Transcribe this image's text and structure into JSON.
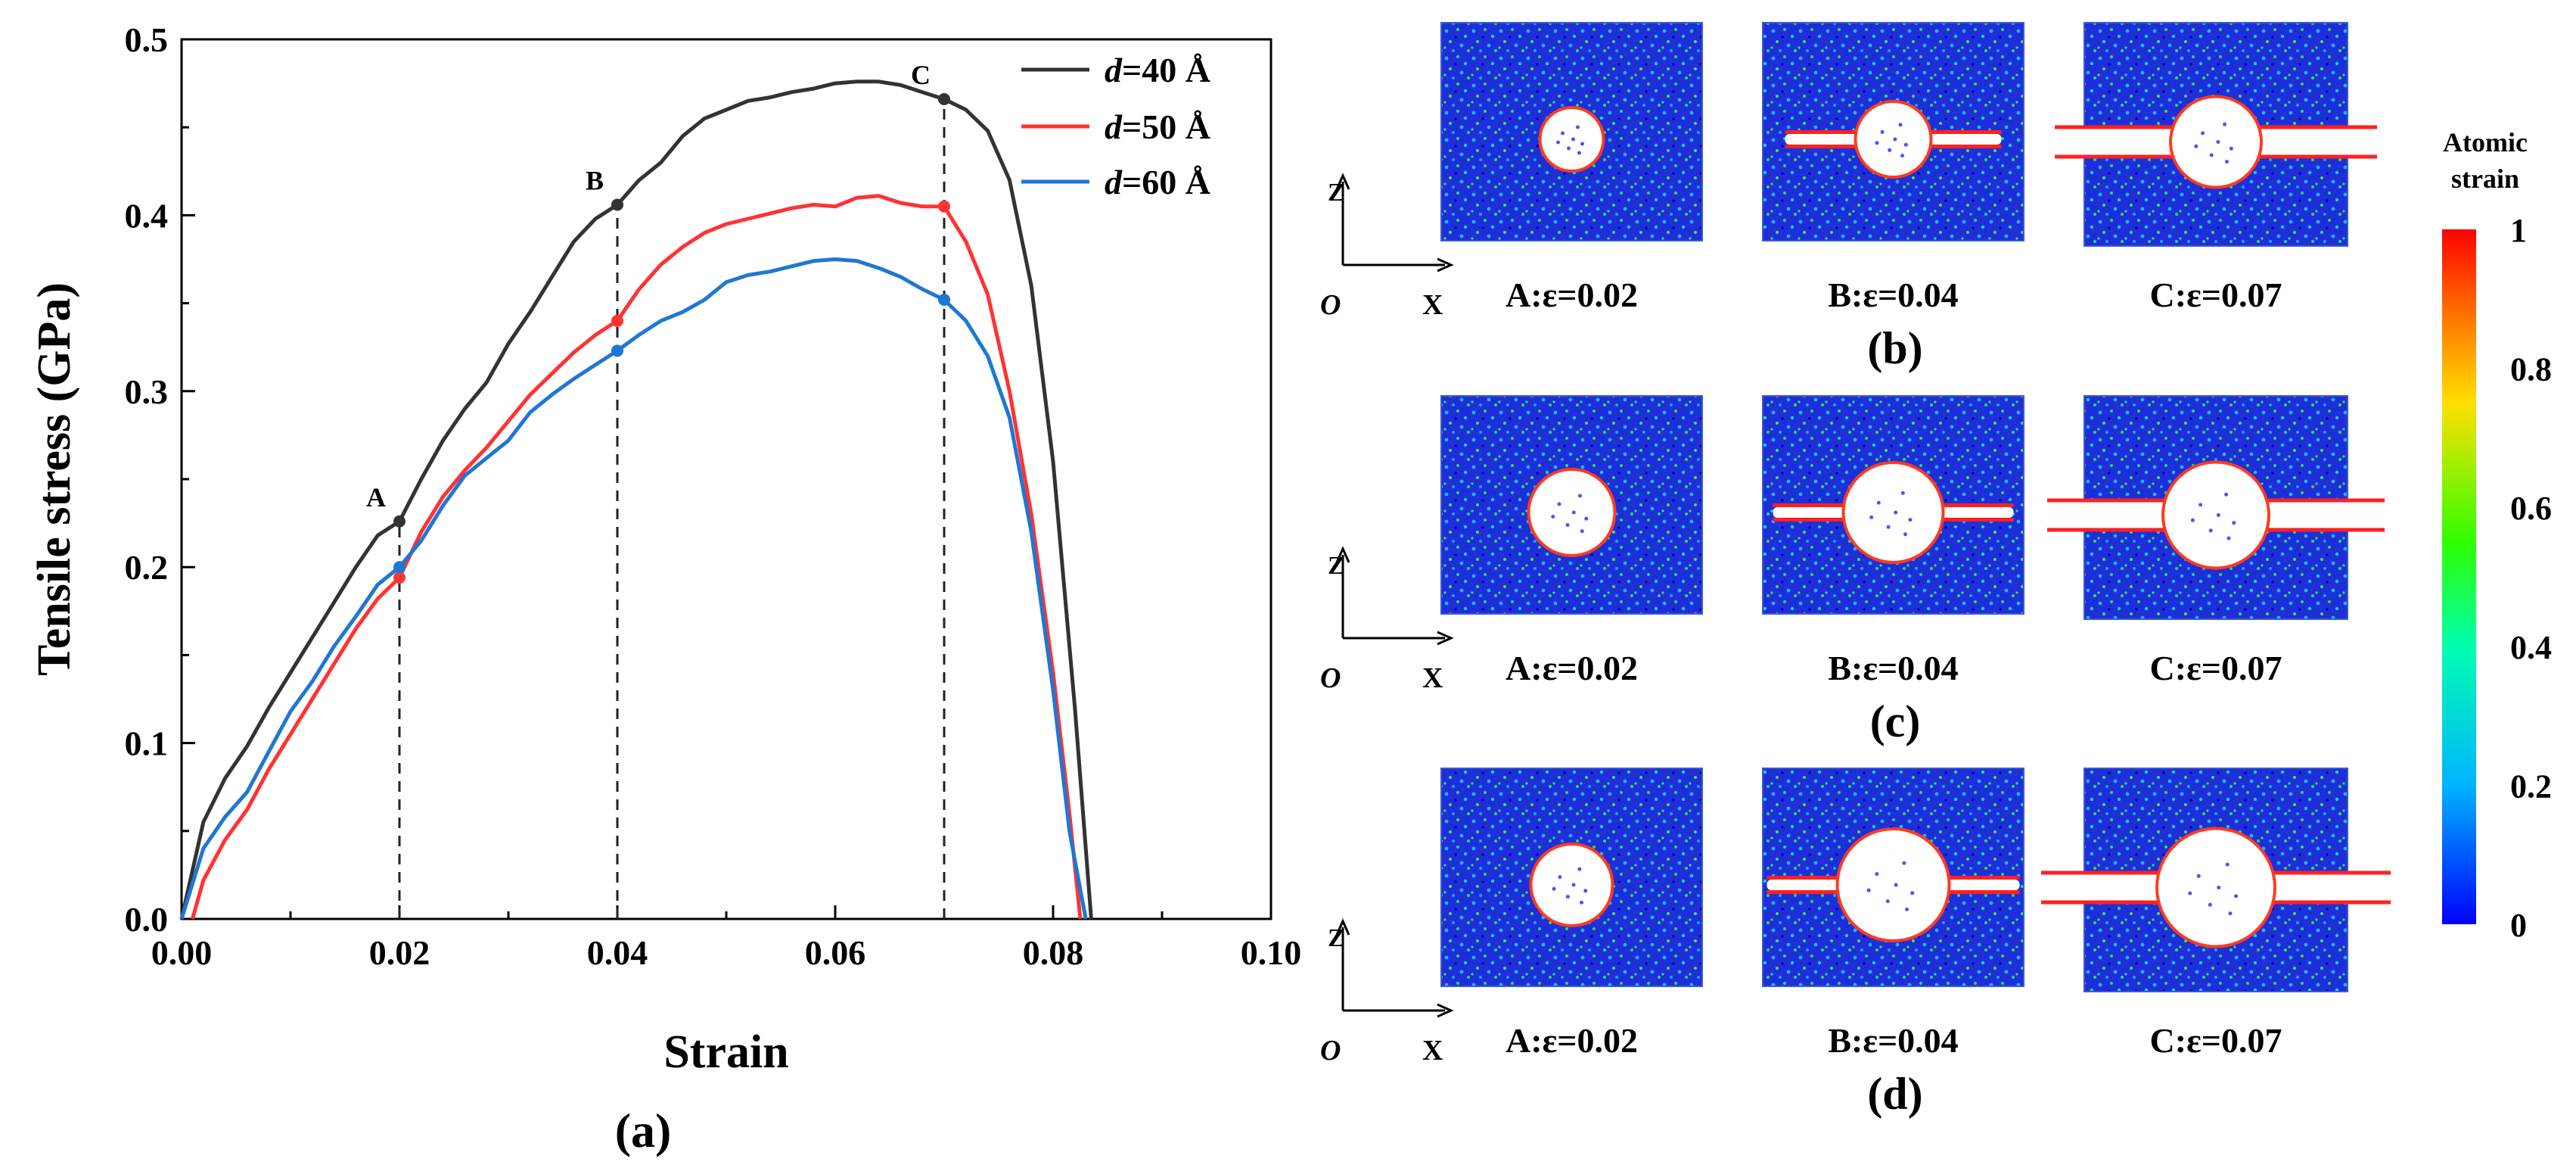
{
  "chart_data": {
    "type": "line",
    "xlabel": "Strain",
    "ylabel": "Tensile stress (GPa)",
    "panel_label": "(a)",
    "xlim": [
      0.0,
      0.1
    ],
    "ylim": [
      0.0,
      0.5
    ],
    "xticks": [
      "0.00",
      "0.02",
      "0.04",
      "0.06",
      "0.08",
      "0.10"
    ],
    "yticks": [
      "0.0",
      "0.1",
      "0.2",
      "0.3",
      "0.4",
      "0.5"
    ],
    "legend_position": "top-right",
    "series": [
      {
        "name": "d=40 Å",
        "prefix": "d",
        "suffix": "=40 Å",
        "color": "#333333",
        "x": [
          0.0,
          0.002,
          0.004,
          0.006,
          0.008,
          0.01,
          0.012,
          0.014,
          0.016,
          0.018,
          0.02,
          0.022,
          0.024,
          0.026,
          0.028,
          0.03,
          0.032,
          0.034,
          0.036,
          0.038,
          0.04,
          0.042,
          0.044,
          0.046,
          0.048,
          0.05,
          0.052,
          0.054,
          0.056,
          0.058,
          0.06,
          0.062,
          0.064,
          0.066,
          0.068,
          0.07,
          0.072,
          0.074,
          0.076,
          0.078,
          0.08,
          0.082,
          0.0835
        ],
        "y": [
          0.0,
          0.055,
          0.08,
          0.098,
          0.12,
          0.14,
          0.16,
          0.18,
          0.2,
          0.218,
          0.226,
          0.25,
          0.272,
          0.29,
          0.305,
          0.327,
          0.345,
          0.365,
          0.385,
          0.398,
          0.406,
          0.42,
          0.43,
          0.445,
          0.455,
          0.46,
          0.465,
          0.467,
          0.47,
          0.472,
          0.475,
          0.476,
          0.476,
          0.474,
          0.47,
          0.466,
          0.46,
          0.448,
          0.42,
          0.36,
          0.26,
          0.12,
          0.0
        ]
      },
      {
        "name": "d=50 Å",
        "prefix": "d",
        "suffix": "=50 Å",
        "color": "#ff3333",
        "x": [
          0.001,
          0.002,
          0.004,
          0.006,
          0.008,
          0.01,
          0.012,
          0.014,
          0.016,
          0.018,
          0.02,
          0.022,
          0.024,
          0.026,
          0.028,
          0.03,
          0.032,
          0.034,
          0.036,
          0.038,
          0.04,
          0.042,
          0.044,
          0.046,
          0.048,
          0.05,
          0.052,
          0.054,
          0.056,
          0.058,
          0.06,
          0.062,
          0.064,
          0.066,
          0.068,
          0.07,
          0.072,
          0.074,
          0.076,
          0.078,
          0.08,
          0.0815,
          0.0825
        ],
        "y": [
          0.0,
          0.022,
          0.045,
          0.062,
          0.085,
          0.105,
          0.125,
          0.145,
          0.165,
          0.182,
          0.194,
          0.22,
          0.24,
          0.255,
          0.268,
          0.283,
          0.298,
          0.31,
          0.322,
          0.332,
          0.34,
          0.358,
          0.372,
          0.382,
          0.39,
          0.395,
          0.398,
          0.401,
          0.404,
          0.406,
          0.405,
          0.41,
          0.411,
          0.407,
          0.405,
          0.405,
          0.385,
          0.355,
          0.3,
          0.23,
          0.14,
          0.06,
          0.0
        ]
      },
      {
        "name": "d=60 Å",
        "prefix": "d",
        "suffix": "=60 Å",
        "color": "#1f77d4",
        "x": [
          0.0,
          0.002,
          0.004,
          0.006,
          0.008,
          0.01,
          0.012,
          0.014,
          0.016,
          0.018,
          0.02,
          0.022,
          0.024,
          0.026,
          0.028,
          0.03,
          0.032,
          0.034,
          0.036,
          0.038,
          0.04,
          0.042,
          0.044,
          0.046,
          0.048,
          0.05,
          0.052,
          0.054,
          0.056,
          0.058,
          0.06,
          0.062,
          0.064,
          0.066,
          0.068,
          0.07,
          0.072,
          0.074,
          0.076,
          0.078,
          0.08,
          0.0815,
          0.083
        ],
        "y": [
          0.0,
          0.04,
          0.058,
          0.072,
          0.095,
          0.118,
          0.135,
          0.155,
          0.172,
          0.19,
          0.2,
          0.215,
          0.235,
          0.252,
          0.262,
          0.272,
          0.288,
          0.298,
          0.307,
          0.315,
          0.323,
          0.332,
          0.34,
          0.345,
          0.352,
          0.362,
          0.366,
          0.368,
          0.371,
          0.374,
          0.375,
          0.374,
          0.37,
          0.365,
          0.358,
          0.352,
          0.34,
          0.32,
          0.285,
          0.22,
          0.13,
          0.05,
          0.0
        ]
      }
    ],
    "markers": [
      {
        "label": "A",
        "x": 0.02,
        "points": [
          0.226,
          0.194,
          0.2
        ]
      },
      {
        "label": "B",
        "x": 0.04,
        "points": [
          0.406,
          0.34,
          0.323
        ]
      },
      {
        "label": "C",
        "x": 0.07,
        "points": [
          0.466,
          0.405,
          0.352
        ]
      }
    ]
  },
  "snapshots": {
    "rows": [
      {
        "label": "(b)",
        "cells": [
          "A:ε=0.02",
          "B:ε=0.04",
          "C:ε=0.07"
        ]
      },
      {
        "label": "(c)",
        "cells": [
          "A:ε=0.02",
          "B:ε=0.04",
          "C:ε=0.07"
        ]
      },
      {
        "label": "(d)",
        "cells": [
          "A:ε=0.02",
          "B:ε=0.04",
          "C:ε=0.07"
        ]
      }
    ],
    "axis_labels": {
      "z": "Z",
      "o": "O",
      "x": "X"
    }
  },
  "colorbar": {
    "title_line1": "Atomic",
    "title_line2": "strain",
    "ticks": [
      "1",
      "0.8",
      "0.6",
      "0.4",
      "0.2",
      "0"
    ],
    "colors": {
      "low": "#0000ff",
      "mid": "#00ff00",
      "high": "#ff0000"
    }
  }
}
